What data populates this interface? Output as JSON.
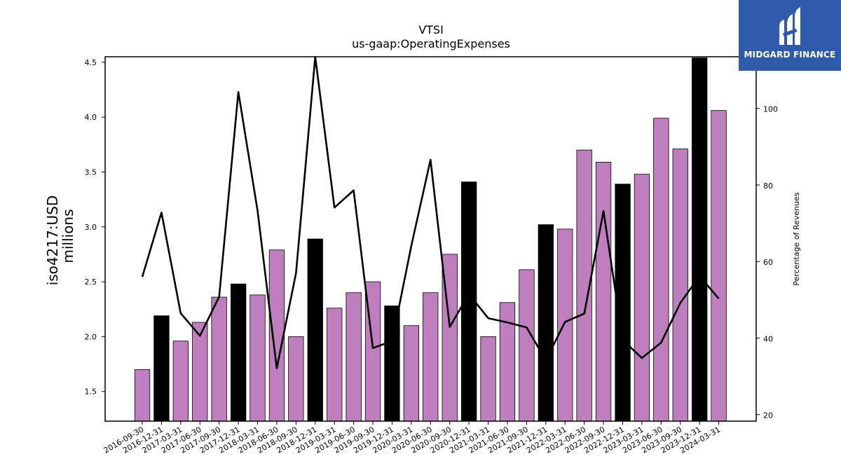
{
  "chart_data": {
    "type": "bar",
    "title": "VTSI",
    "subtitle": "us-gaap:OperatingExpenses",
    "ylabel": "iso4217:USD",
    "ylabel_units": "millions",
    "y2label": "Percentage of Revenues",
    "ylim": [
      1.23,
      4.55
    ],
    "y2lim": [
      18.3,
      113.5
    ],
    "yticks": [
      "1.5",
      "2.0",
      "2.5",
      "3.0",
      "3.5",
      "4.0",
      "4.5"
    ],
    "y2ticks": [
      "20",
      "40",
      "60",
      "80",
      "100"
    ],
    "categories": [
      "2016-09-30",
      "2016-12-31",
      "2017-03-31",
      "2017-06-30",
      "2017-09-30",
      "2017-12-31",
      "2018-03-31",
      "2018-06-30",
      "2018-09-30",
      "2018-12-31",
      "2019-03-31",
      "2019-06-30",
      "2019-09-30",
      "2019-12-31",
      "2020-03-31",
      "2020-06-30",
      "2020-09-30",
      "2020-12-31",
      "2021-03-31",
      "2021-06-30",
      "2021-09-30",
      "2021-12-31",
      "2022-03-31",
      "2022-06-30",
      "2022-09-30",
      "2022-12-31",
      "2023-03-31",
      "2023-06-30",
      "2023-09-30",
      "2023-12-31",
      "2024-03-31"
    ],
    "series": [
      {
        "type": "bar",
        "values": [
          1.7,
          2.19,
          1.96,
          2.13,
          2.36,
          2.48,
          2.38,
          2.79,
          2.0,
          2.89,
          2.26,
          2.4,
          2.5,
          2.28,
          2.1,
          2.4,
          2.75,
          3.41,
          2.0,
          2.31,
          2.61,
          3.02,
          2.98,
          3.7,
          3.59,
          3.39,
          3.48,
          3.99,
          3.71,
          4.54,
          4.06
        ],
        "annual": [
          false,
          true,
          false,
          false,
          false,
          true,
          false,
          false,
          false,
          true,
          false,
          false,
          false,
          true,
          false,
          false,
          false,
          true,
          false,
          false,
          false,
          true,
          false,
          false,
          false,
          true,
          false,
          false,
          false,
          true,
          false
        ]
      },
      {
        "type": "line",
        "axis": "right",
        "values": [
          56.0,
          72.8,
          46.5,
          40.6,
          50.8,
          104.3,
          73.3,
          32.1,
          57.0,
          115.5,
          74.1,
          78.6,
          37.4,
          39.2,
          64.1,
          86.6,
          42.9,
          51.5,
          45.2,
          44.1,
          42.8,
          34.2,
          44.2,
          46.4,
          73.2,
          39.5,
          34.8,
          38.8,
          49.2,
          56.2,
          50.3
        ]
      }
    ],
    "colors": {
      "quarter_bar": "#bf7fbf",
      "annual_bar": "#000000",
      "line": "#000000"
    }
  },
  "logo": {
    "name": "MIDGARD FINANCE",
    "background": "#2f5bab"
  }
}
